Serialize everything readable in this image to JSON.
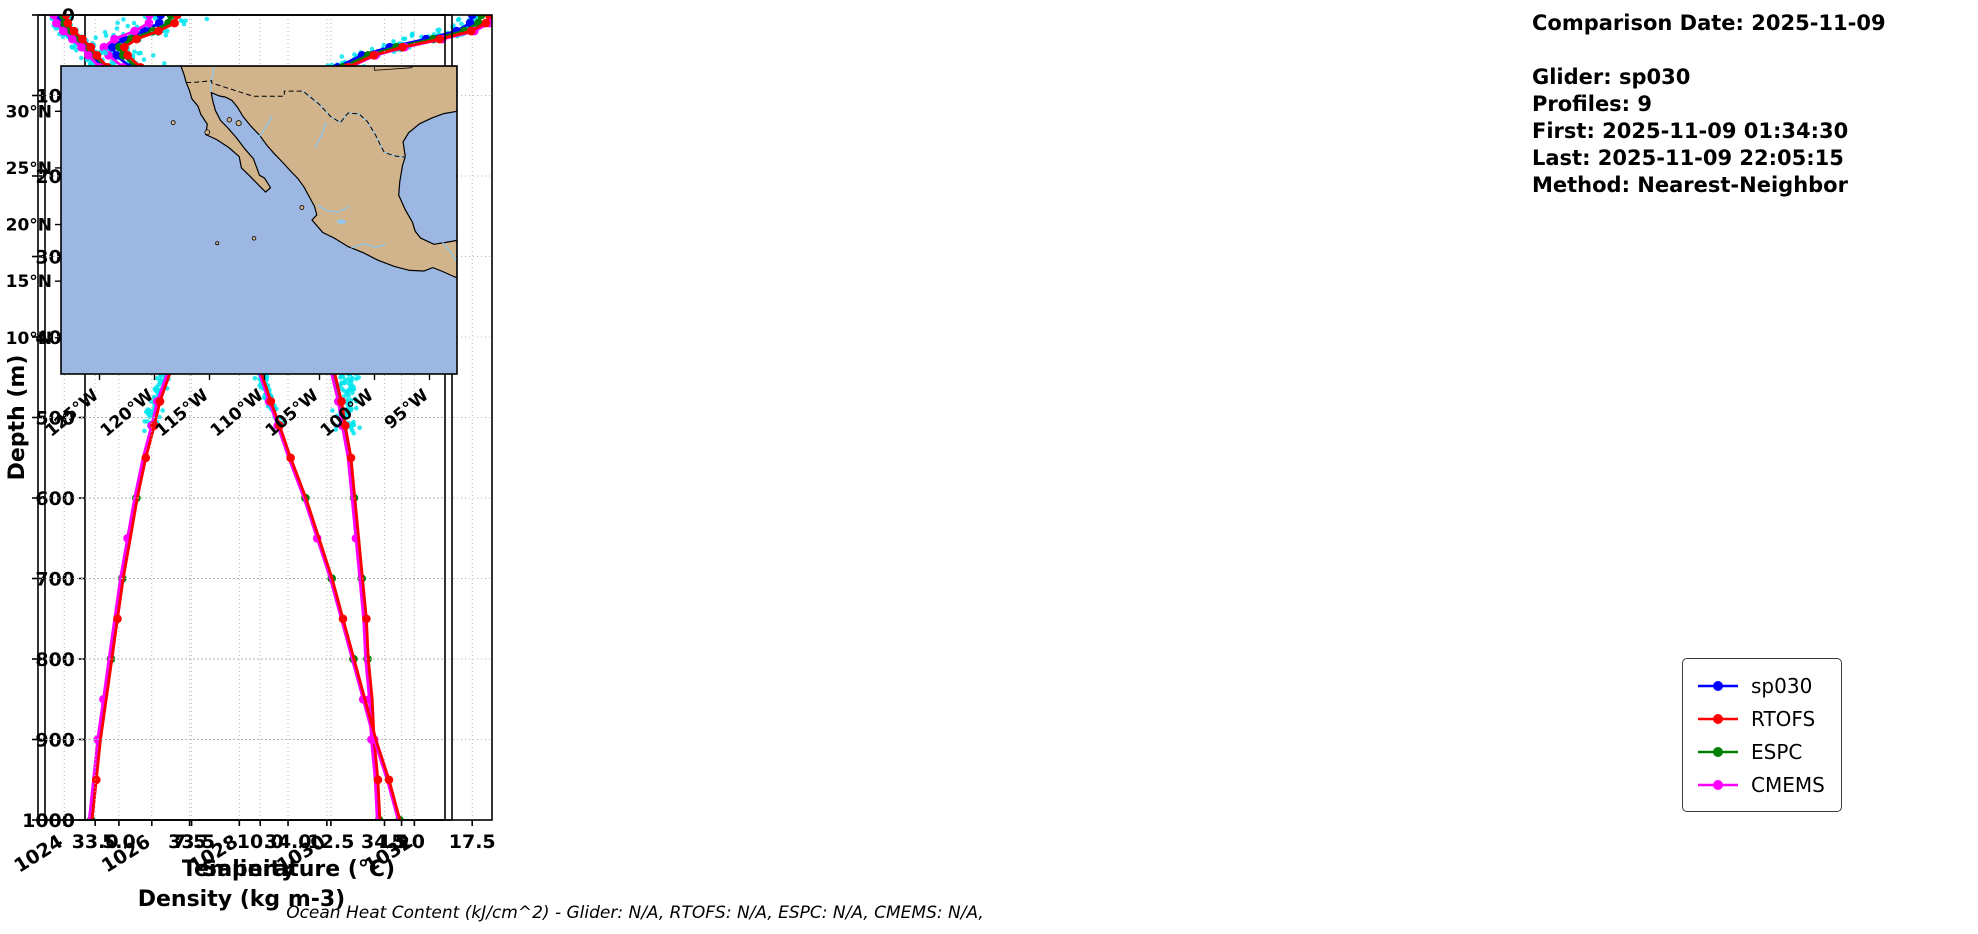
{
  "info_panel": {
    "lines": [
      "Comparison Date: 2025-11-09",
      "",
      "Glider: sp030",
      "Profiles: 9",
      "First: 2025-11-09 01:34:30",
      "Last: 2025-11-09 22:05:15",
      "Method: Nearest-Neighbor"
    ]
  },
  "footer": {
    "ohc_text": "Ocean Heat Content (kJ/cm^2) - Glider: N/A,  RTOFS: N/A,  ESPC: N/A,  CMEMS: N/A,"
  },
  "legend": {
    "items": [
      {
        "label": "sp030",
        "color": "#0000ff"
      },
      {
        "label": "RTOFS",
        "color": "#ff0000"
      },
      {
        "label": "ESPC",
        "color": "#008000"
      },
      {
        "label": "CMEMS",
        "color": "#ff00ff"
      }
    ]
  },
  "chart_data": [
    {
      "type": "line",
      "title": "",
      "xlabel": "Temperature (°C)",
      "ylabel": "Depth (m)",
      "xlim": [
        3.8,
        18.2
      ],
      "xticks": [
        5.0,
        7.5,
        10.0,
        12.5,
        15.0,
        17.5
      ],
      "xtick_labels": [
        "5.0",
        "7.5",
        "10.0",
        "12.5",
        "15.0",
        "17.5"
      ],
      "ylim": [
        0,
        1000
      ],
      "yticks": [
        0,
        100,
        200,
        300,
        400,
        500,
        600,
        700,
        800,
        900,
        1000
      ],
      "grid": true,
      "depths": [
        0,
        10,
        20,
        30,
        40,
        50,
        65,
        80,
        100,
        120,
        150,
        175,
        200,
        225,
        250,
        275,
        300,
        330,
        360,
        400,
        440,
        480,
        510,
        550,
        600,
        650,
        700,
        750,
        800,
        850,
        900,
        950,
        1000
      ],
      "base_values": [
        17.8,
        17.7,
        17.2,
        16.1,
        14.8,
        13.8,
        12.9,
        12.2,
        11.6,
        11.0,
        10.3,
        9.8,
        9.4,
        9.0,
        8.7,
        8.4,
        8.1,
        7.8,
        7.5,
        7.1,
        6.8,
        6.4,
        6.2,
        5.9,
        5.6,
        5.35,
        5.1,
        4.9,
        4.7,
        4.5,
        4.3,
        4.15,
        4.0
      ],
      "series": [
        {
          "name": "sp030",
          "color": "#0000ff",
          "surface_offset": -0.3,
          "deep_offset": 0.0,
          "max_depth": 510,
          "deep_markers": []
        },
        {
          "name": "RTOFS",
          "color": "#ff0000",
          "surface_offset": 0.25,
          "deep_offset": 0.05,
          "max_depth": 1000,
          "deep_markers": [
            550,
            750,
            950
          ]
        },
        {
          "name": "ESPC",
          "color": "#008000",
          "surface_offset": 0.0,
          "deep_offset": 0.02,
          "max_depth": 1000,
          "deep_markers": [
            600,
            700,
            800,
            1000
          ]
        },
        {
          "name": "CMEMS",
          "color": "#ff00ff",
          "surface_offset": 0.5,
          "deep_offset": -0.05,
          "max_depth": 1000,
          "deep_markers": [
            650,
            850,
            900
          ]
        }
      ],
      "scatter": {
        "name": "glider-raw-samples",
        "color": "#00e5ee",
        "noise": 0.3,
        "bias_mid": -0.18,
        "count": 650,
        "max_depth": 515
      }
    },
    {
      "type": "line",
      "title": "",
      "xlabel": "Salinity",
      "ylabel": "",
      "xlim": [
        32.74,
        34.85
      ],
      "xticks": [
        33.0,
        33.5,
        34.0,
        34.5
      ],
      "xtick_labels": [
        "33.0",
        "33.5",
        "34.0",
        "34.5"
      ],
      "ylim": [
        0,
        1000
      ],
      "yticks": [
        0,
        100,
        200,
        300,
        400,
        500,
        600,
        700,
        800,
        900,
        1000
      ],
      "grid": true,
      "depths": [
        0,
        10,
        20,
        30,
        40,
        50,
        65,
        80,
        100,
        120,
        150,
        175,
        200,
        225,
        250,
        275,
        300,
        330,
        360,
        400,
        440,
        480,
        510,
        550,
        600,
        650,
        700,
        750,
        800,
        850,
        900,
        950,
        1000
      ],
      "base_values": [
        33.37,
        33.36,
        33.28,
        33.17,
        33.11,
        33.13,
        33.2,
        33.3,
        33.45,
        33.57,
        33.72,
        33.82,
        33.9,
        33.95,
        34.0,
        34.03,
        34.07,
        34.11,
        34.14,
        34.19,
        34.23,
        34.27,
        34.29,
        34.32,
        34.34,
        34.36,
        34.38,
        34.4,
        34.41,
        34.43,
        34.44,
        34.46,
        34.47
      ],
      "series": [
        {
          "name": "sp030",
          "color": "#0000ff",
          "surface_offset": -0.03,
          "deep_offset": 0.0,
          "max_depth": 510,
          "deep_markers": []
        },
        {
          "name": "RTOFS",
          "color": "#ff0000",
          "surface_offset": 0.05,
          "deep_offset": 0.006,
          "max_depth": 1000,
          "deep_markers": [
            550,
            750,
            950
          ]
        },
        {
          "name": "ESPC",
          "color": "#008000",
          "surface_offset": 0.02,
          "deep_offset": 0.002,
          "max_depth": 1000,
          "deep_markers": [
            600,
            700,
            800,
            1000
          ]
        },
        {
          "name": "CMEMS",
          "color": "#ff00ff",
          "surface_offset": -0.08,
          "deep_offset": -0.008,
          "max_depth": 1000,
          "deep_markers": [
            650,
            850,
            900
          ]
        }
      ],
      "scatter": {
        "name": "glider-raw-samples",
        "color": "#00e5ee",
        "noise": 0.07,
        "bias_mid": 0.09,
        "count": 650,
        "max_depth": 515
      }
    },
    {
      "type": "line",
      "title": "",
      "xlabel": "Density (kg m-3)",
      "ylabel": "",
      "xlim": [
        1023.4,
        1032.7
      ],
      "xticks": [
        1024,
        1026,
        1028,
        1030,
        1032
      ],
      "xtick_labels": [
        "1024",
        "1026",
        "1028",
        "1030",
        "1032"
      ],
      "ylim": [
        0,
        1000
      ],
      "yticks": [
        0,
        100,
        200,
        300,
        400,
        500,
        600,
        700,
        800,
        900,
        1000
      ],
      "grid": true,
      "depths": [
        0,
        10,
        20,
        30,
        40,
        50,
        65,
        80,
        100,
        120,
        150,
        175,
        200,
        225,
        250,
        275,
        300,
        330,
        360,
        400,
        440,
        480,
        510,
        550,
        600,
        650,
        700,
        750,
        800,
        850,
        900,
        950,
        1000
      ],
      "base_values": [
        1023.9,
        1023.95,
        1024.1,
        1024.3,
        1024.5,
        1024.65,
        1024.9,
        1025.15,
        1025.45,
        1025.7,
        1026.1,
        1026.35,
        1026.6,
        1026.85,
        1027.05,
        1027.3,
        1027.5,
        1027.7,
        1027.9,
        1028.2,
        1028.45,
        1028.7,
        1028.9,
        1029.15,
        1029.5,
        1029.8,
        1030.1,
        1030.35,
        1030.6,
        1030.85,
        1031.1,
        1031.4,
        1031.65
      ],
      "series": [
        {
          "name": "sp030",
          "color": "#0000ff",
          "surface_offset": -0.05,
          "deep_offset": 0.0,
          "max_depth": 510,
          "deep_markers": []
        },
        {
          "name": "RTOFS",
          "color": "#ff0000",
          "surface_offset": 0.12,
          "deep_offset": 0.02,
          "max_depth": 1000,
          "deep_markers": [
            550,
            750,
            950
          ]
        },
        {
          "name": "ESPC",
          "color": "#008000",
          "surface_offset": 0.05,
          "deep_offset": 0.01,
          "max_depth": 1000,
          "deep_markers": [
            600,
            700,
            800,
            1000
          ]
        },
        {
          "name": "CMEMS",
          "color": "#ff00ff",
          "surface_offset": -0.12,
          "deep_offset": -0.02,
          "max_depth": 1000,
          "deep_markers": [
            650,
            850,
            900
          ]
        }
      ],
      "scatter": {
        "name": "glider-raw-samples",
        "color": "#00e5ee",
        "noise": 0.12,
        "bias_mid": 0,
        "count": 600,
        "max_depth": 515
      }
    }
  ],
  "map": {
    "extent": {
      "lon_min": -128.5,
      "lon_max": -92.5,
      "lat_min": 6.8,
      "lat_max": 34.0
    },
    "lat_ticks": [
      30,
      25,
      20,
      15,
      10
    ],
    "lat_labels": [
      "30°N",
      "25°N",
      "20°N",
      "15°N",
      "10°N"
    ],
    "lon_ticks": [
      -125,
      -120,
      -115,
      -110,
      -105,
      -100,
      -95
    ],
    "lon_labels": [
      "125°W",
      "120°W",
      "115°W",
      "110°W",
      "105°W",
      "100°W",
      "95°W"
    ],
    "colors": {
      "ocean": "#9cb8e2",
      "land": "#d2b48c",
      "coast": "#000000",
      "border": "#000000",
      "river": "#8ec9ee"
    },
    "land": [
      [
        -117.6,
        34.0
      ],
      [
        -117.3,
        33.2
      ],
      [
        -117.12,
        32.53
      ],
      [
        -116.85,
        31.9
      ],
      [
        -116.6,
        31.1
      ],
      [
        -116.05,
        30.45
      ],
      [
        -115.8,
        29.75
      ],
      [
        -115.2,
        28.85
      ],
      [
        -115.35,
        27.95
      ],
      [
        -114.35,
        27.5
      ],
      [
        -113.25,
        26.8
      ],
      [
        -112.3,
        26.0
      ],
      [
        -112.1,
        25.0
      ],
      [
        -111.4,
        24.35
      ],
      [
        -110.6,
        23.55
      ],
      [
        -109.9,
        22.87
      ],
      [
        -109.45,
        23.25
      ],
      [
        -110.0,
        24.1
      ],
      [
        -110.45,
        24.35
      ],
      [
        -111.0,
        25.8
      ],
      [
        -111.8,
        26.7
      ],
      [
        -112.5,
        27.6
      ],
      [
        -113.3,
        28.5
      ],
      [
        -114.0,
        29.2
      ],
      [
        -114.45,
        30.05
      ],
      [
        -114.7,
        30.9
      ],
      [
        -114.85,
        31.65
      ],
      [
        -114.1,
        31.35
      ],
      [
        -113.55,
        31.25
      ],
      [
        -112.95,
        30.95
      ],
      [
        -112.45,
        30.35
      ],
      [
        -111.95,
        29.55
      ],
      [
        -111.3,
        28.75
      ],
      [
        -110.45,
        27.9
      ],
      [
        -109.75,
        26.95
      ],
      [
        -109.1,
        26.25
      ],
      [
        -108.45,
        25.6
      ],
      [
        -107.75,
        24.85
      ],
      [
        -106.95,
        24.05
      ],
      [
        -106.4,
        23.3
      ],
      [
        -105.9,
        22.4
      ],
      [
        -105.45,
        21.6
      ],
      [
        -105.25,
        20.85
      ],
      [
        -105.68,
        20.4
      ],
      [
        -104.7,
        19.3
      ],
      [
        -103.65,
        18.8
      ],
      [
        -102.4,
        18.05
      ],
      [
        -101.0,
        17.5
      ],
      [
        -99.7,
        16.85
      ],
      [
        -98.2,
        16.3
      ],
      [
        -96.8,
        15.95
      ],
      [
        -95.5,
        15.9
      ],
      [
        -94.7,
        16.2
      ],
      [
        -93.8,
        15.85
      ],
      [
        -93.0,
        15.5
      ],
      [
        -92.5,
        15.3
      ],
      [
        -92.5,
        18.6
      ],
      [
        -93.5,
        18.42
      ],
      [
        -94.6,
        18.25
      ],
      [
        -95.8,
        18.8
      ],
      [
        -96.3,
        19.4
      ],
      [
        -96.55,
        20.2
      ],
      [
        -97.2,
        21.3
      ],
      [
        -97.8,
        22.6
      ],
      [
        -97.7,
        23.8
      ],
      [
        -97.45,
        25.2
      ],
      [
        -97.2,
        26.0
      ],
      [
        -97.4,
        27.3
      ],
      [
        -96.9,
        28.1
      ],
      [
        -95.9,
        28.9
      ],
      [
        -94.8,
        29.4
      ],
      [
        -93.7,
        29.8
      ],
      [
        -92.5,
        30.0
      ],
      [
        -92.5,
        34.0
      ]
    ],
    "islands": [
      [
        -118.3,
        29.0,
        2
      ],
      [
        -115.2,
        28.15,
        2.4
      ],
      [
        -113.2,
        29.25,
        2.2
      ],
      [
        -112.35,
        28.95,
        2.6
      ],
      [
        -106.6,
        21.5,
        2
      ],
      [
        -110.95,
        18.78,
        1.8
      ],
      [
        -114.3,
        18.35,
        1.6
      ]
    ],
    "lakes": [
      [
        -103.0,
        20.25
      ]
    ],
    "border_dashed": [
      [
        -117.12,
        32.53
      ],
      [
        -116.3,
        32.57
      ],
      [
        -114.8,
        32.7
      ],
      [
        -114.8,
        32.5
      ],
      [
        -111.05,
        31.33
      ],
      [
        -108.2,
        31.33
      ],
      [
        -108.2,
        31.78
      ],
      [
        -106.5,
        31.78
      ],
      [
        -105.0,
        30.6
      ],
      [
        -104.0,
        29.55
      ],
      [
        -103.1,
        29.0
      ],
      [
        -102.4,
        29.85
      ],
      [
        -101.4,
        29.77
      ],
      [
        -100.65,
        29.1
      ],
      [
        -99.9,
        27.9
      ],
      [
        -99.45,
        27.0
      ],
      [
        -99.1,
        26.35
      ],
      [
        -98.1,
        26.05
      ],
      [
        -97.15,
        25.95
      ]
    ],
    "state_lines": [
      [
        [
          -100.0,
          34.0
        ],
        [
          -100.0,
          33.62
        ],
        [
          -96.6,
          33.85
        ],
        [
          -96.6,
          34.0
        ]
      ]
    ],
    "rivers": [
      [
        [
          -114.6,
          34.0
        ],
        [
          -114.65,
          33.4
        ],
        [
          -114.85,
          32.7
        ],
        [
          -114.9,
          32.1
        ],
        [
          -114.85,
          31.7
        ]
      ],
      [
        [
          -106.5,
          31.78
        ],
        [
          -105.0,
          30.6
        ],
        [
          -104.0,
          29.55
        ],
        [
          -103.1,
          29.0
        ],
        [
          -102.4,
          29.85
        ],
        [
          -101.4,
          29.77
        ],
        [
          -100.65,
          29.1
        ],
        [
          -99.9,
          27.9
        ],
        [
          -99.45,
          27.0
        ],
        [
          -99.1,
          26.35
        ],
        [
          -98.1,
          26.05
        ],
        [
          -97.15,
          25.95
        ]
      ],
      [
        [
          -105.4,
          26.8
        ],
        [
          -104.8,
          27.9
        ],
        [
          -104.4,
          29.0
        ]
      ],
      [
        [
          -105.2,
          21.72
        ],
        [
          -104.3,
          21.2
        ],
        [
          -103.3,
          21.1
        ],
        [
          -102.3,
          21.6
        ]
      ],
      [
        [
          -102.1,
          17.95
        ],
        [
          -101.0,
          18.3
        ],
        [
          -99.9,
          18.0
        ],
        [
          -99.0,
          18.2
        ]
      ],
      [
        [
          -110.6,
          27.6
        ],
        [
          -109.9,
          28.6
        ],
        [
          -109.3,
          29.6
        ]
      ],
      [
        [
          -93.8,
          18.4
        ],
        [
          -93.0,
          17.5
        ],
        [
          -92.6,
          16.8
        ]
      ]
    ]
  }
}
